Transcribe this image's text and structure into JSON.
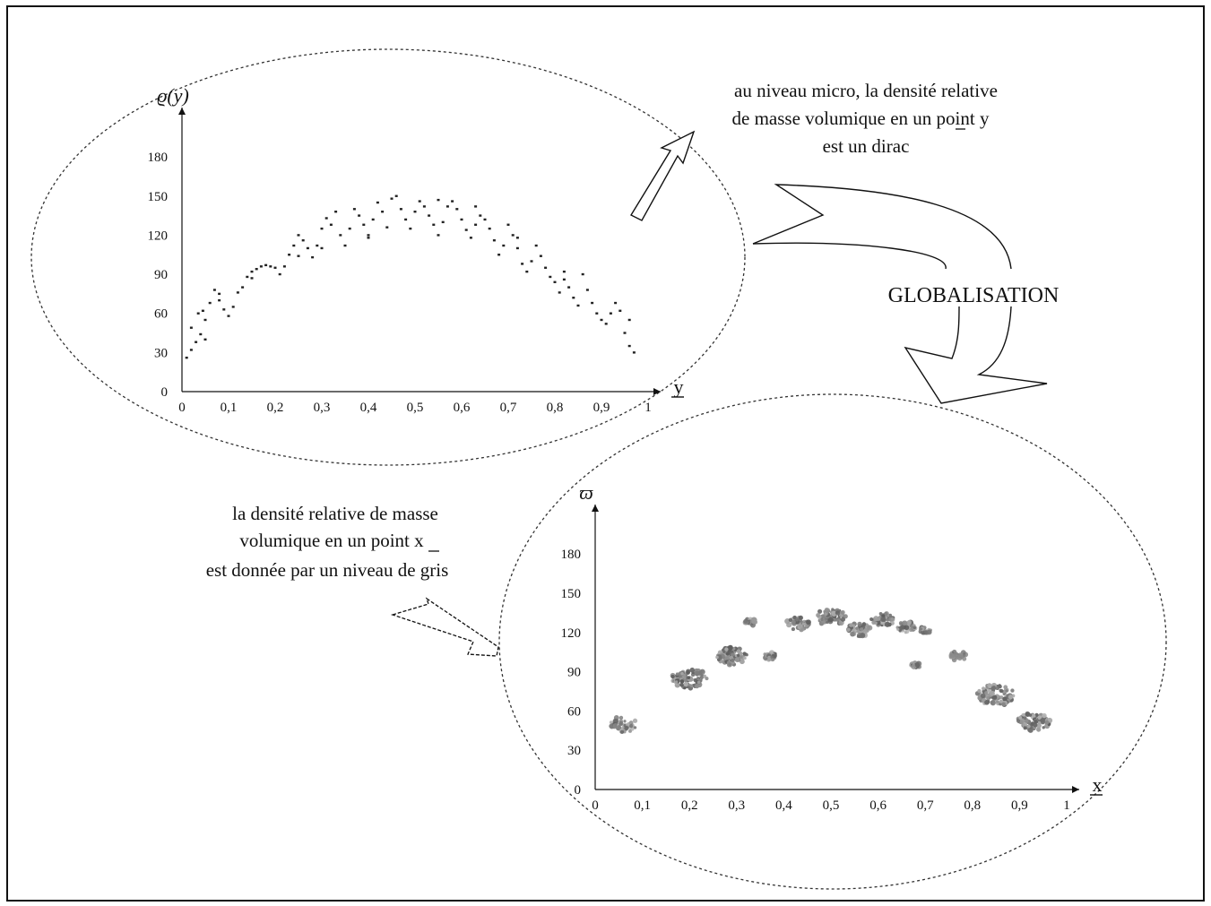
{
  "annotations": {
    "micro": [
      "au niveau micro, la densité relative",
      "de masse volumique en un point  y",
      "est un dirac"
    ],
    "macro": [
      "la densité relative de masse",
      "volumique en un point  x",
      "est donnée par un niveau de gris"
    ],
    "globalisation": "GLOBALISATION"
  },
  "chart_data": [
    {
      "type": "scatter",
      "title": "",
      "ylabel": "ϱ(y)",
      "xlabel": "y",
      "xlim": [
        0,
        1
      ],
      "ylim": [
        0,
        200
      ],
      "x_ticks": [
        "0",
        "0,1",
        "0,2",
        "0,3",
        "0,4",
        "0,5",
        "0,6",
        "0,7",
        "0,8",
        "0,9",
        "1"
      ],
      "y_ticks": [
        "0",
        "30",
        "60",
        "90",
        "120",
        "150",
        "180"
      ],
      "grid": false,
      "marker": "small dark dot",
      "series": [
        {
          "points": [
            [
              0.01,
              26
            ],
            [
              0.02,
              32
            ],
            [
              0.03,
              38
            ],
            [
              0.04,
              44
            ],
            [
              0.05,
              40
            ],
            [
              0.02,
              49
            ],
            [
              0.035,
              60
            ],
            [
              0.045,
              62
            ],
            [
              0.05,
              55
            ],
            [
              0.06,
              68
            ],
            [
              0.07,
              78
            ],
            [
              0.08,
              70
            ],
            [
              0.09,
              63
            ],
            [
              0.1,
              58
            ],
            [
              0.11,
              65
            ],
            [
              0.12,
              76
            ],
            [
              0.13,
              80
            ],
            [
              0.14,
              88
            ],
            [
              0.15,
              92
            ],
            [
              0.16,
              94
            ],
            [
              0.17,
              96
            ],
            [
              0.18,
              97
            ],
            [
              0.19,
              96
            ],
            [
              0.2,
              95
            ],
            [
              0.21,
              90
            ],
            [
              0.22,
              96
            ],
            [
              0.23,
              105
            ],
            [
              0.24,
              112
            ],
            [
              0.25,
              120
            ],
            [
              0.26,
              116
            ],
            [
              0.27,
              110
            ],
            [
              0.28,
              103
            ],
            [
              0.29,
              112
            ],
            [
              0.3,
              125
            ],
            [
              0.31,
              133
            ],
            [
              0.32,
              128
            ],
            [
              0.33,
              138
            ],
            [
              0.34,
              120
            ],
            [
              0.35,
              112
            ],
            [
              0.36,
              125
            ],
            [
              0.37,
              140
            ],
            [
              0.38,
              135
            ],
            [
              0.39,
              128
            ],
            [
              0.4,
              120
            ],
            [
              0.41,
              132
            ],
            [
              0.42,
              145
            ],
            [
              0.43,
              138
            ],
            [
              0.44,
              126
            ],
            [
              0.45,
              148
            ],
            [
              0.46,
              150
            ],
            [
              0.47,
              140
            ],
            [
              0.48,
              132
            ],
            [
              0.49,
              125
            ],
            [
              0.5,
              138
            ],
            [
              0.51,
              146
            ],
            [
              0.52,
              142
            ],
            [
              0.53,
              135
            ],
            [
              0.54,
              128
            ],
            [
              0.55,
              120
            ],
            [
              0.56,
              130
            ],
            [
              0.57,
              142
            ],
            [
              0.58,
              146
            ],
            [
              0.59,
              140
            ],
            [
              0.6,
              132
            ],
            [
              0.61,
              124
            ],
            [
              0.62,
              118
            ],
            [
              0.63,
              128
            ],
            [
              0.64,
              135
            ],
            [
              0.65,
              132
            ],
            [
              0.66,
              125
            ],
            [
              0.67,
              116
            ],
            [
              0.68,
              105
            ],
            [
              0.69,
              112
            ],
            [
              0.7,
              128
            ],
            [
              0.71,
              120
            ],
            [
              0.72,
              110
            ],
            [
              0.73,
              98
            ],
            [
              0.74,
              92
            ],
            [
              0.75,
              100
            ],
            [
              0.76,
              112
            ],
            [
              0.77,
              104
            ],
            [
              0.78,
              95
            ],
            [
              0.79,
              88
            ],
            [
              0.8,
              84
            ],
            [
              0.81,
              76
            ],
            [
              0.82,
              86
            ],
            [
              0.83,
              80
            ],
            [
              0.84,
              72
            ],
            [
              0.85,
              66
            ],
            [
              0.86,
              90
            ],
            [
              0.87,
              78
            ],
            [
              0.88,
              68
            ],
            [
              0.89,
              60
            ],
            [
              0.9,
              55
            ],
            [
              0.91,
              52
            ],
            [
              0.92,
              60
            ],
            [
              0.93,
              68
            ],
            [
              0.94,
              62
            ],
            [
              0.95,
              45
            ],
            [
              0.96,
              35
            ],
            [
              0.97,
              30
            ],
            [
              0.96,
              55
            ],
            [
              0.15,
              87
            ],
            [
              0.25,
              104
            ],
            [
              0.4,
              118
            ],
            [
              0.55,
              147
            ],
            [
              0.63,
              142
            ],
            [
              0.72,
              118
            ],
            [
              0.82,
              92
            ],
            [
              0.08,
              75
            ],
            [
              0.3,
              110
            ]
          ]
        }
      ]
    },
    {
      "type": "scatter",
      "title": "",
      "ylabel": "ϖ",
      "xlabel": "x",
      "xlim": [
        0,
        1
      ],
      "ylim": [
        0,
        200
      ],
      "x_ticks": [
        "0",
        "0,1",
        "0,2",
        "0,3",
        "0,4",
        "0,5",
        "0,6",
        "0,7",
        "0,8",
        "0,9",
        "1"
      ],
      "y_ticks": [
        "0",
        "30",
        "60",
        "90",
        "120",
        "150",
        "180"
      ],
      "grid": false,
      "marker": "gray-level cluster",
      "series": [
        {
          "clusters": [
            {
              "x": 0.06,
              "y": 50,
              "spread": 1.2,
              "density": 0.5
            },
            {
              "x": 0.2,
              "y": 85,
              "spread": 1.5,
              "density": 0.9
            },
            {
              "x": 0.29,
              "y": 102,
              "spread": 1.3,
              "density": 0.95
            },
            {
              "x": 0.33,
              "y": 128,
              "spread": 0.5,
              "density": 0.6
            },
            {
              "x": 0.37,
              "y": 102,
              "spread": 0.6,
              "density": 0.7
            },
            {
              "x": 0.43,
              "y": 127,
              "spread": 1.0,
              "density": 0.75
            },
            {
              "x": 0.5,
              "y": 132,
              "spread": 1.3,
              "density": 0.8
            },
            {
              "x": 0.56,
              "y": 122,
              "spread": 1.0,
              "density": 0.75
            },
            {
              "x": 0.61,
              "y": 130,
              "spread": 1.0,
              "density": 0.85
            },
            {
              "x": 0.66,
              "y": 124,
              "spread": 0.8,
              "density": 0.65
            },
            {
              "x": 0.7,
              "y": 122,
              "spread": 0.5,
              "density": 0.6
            },
            {
              "x": 0.68,
              "y": 95,
              "spread": 0.4,
              "density": 0.7
            },
            {
              "x": 0.77,
              "y": 102,
              "spread": 0.7,
              "density": 0.45
            },
            {
              "x": 0.85,
              "y": 72,
              "spread": 1.6,
              "density": 0.9
            },
            {
              "x": 0.93,
              "y": 52,
              "spread": 1.4,
              "density": 0.85
            }
          ]
        }
      ]
    }
  ]
}
